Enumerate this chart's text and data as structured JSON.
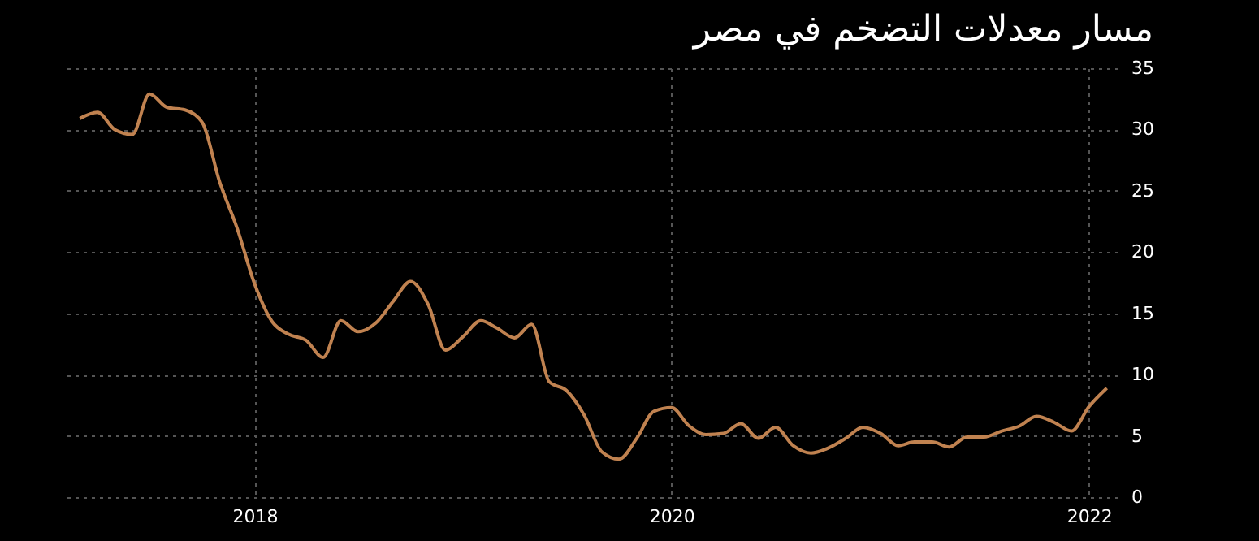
{
  "chart_data": {
    "type": "line",
    "title": "مسار معدلات التضخم في مصر",
    "x": [
      "2017-03",
      "2017-04",
      "2017-05",
      "2017-06",
      "2017-07",
      "2017-08",
      "2017-09",
      "2017-10",
      "2017-11",
      "2017-12",
      "2018-01",
      "2018-02",
      "2018-03",
      "2018-04",
      "2018-05",
      "2018-06",
      "2018-07",
      "2018-08",
      "2018-09",
      "2018-10",
      "2018-11",
      "2018-12",
      "2019-01",
      "2019-02",
      "2019-03",
      "2019-04",
      "2019-05",
      "2019-06",
      "2019-07",
      "2019-08",
      "2019-09",
      "2019-10",
      "2019-11",
      "2019-12",
      "2020-01",
      "2020-02",
      "2020-03",
      "2020-04",
      "2020-05",
      "2020-06",
      "2020-07",
      "2020-08",
      "2020-09",
      "2020-10",
      "2020-11",
      "2020-12",
      "2021-01",
      "2021-02",
      "2021-03",
      "2021-04",
      "2021-05",
      "2021-06",
      "2021-07",
      "2021-08",
      "2021-09",
      "2021-10",
      "2021-11",
      "2021-12",
      "2022-01",
      "2022-02"
    ],
    "series": [
      {
        "color": "#c08250",
        "values": [
          30.9,
          31.4,
          30.0,
          29.6,
          32.9,
          31.8,
          31.6,
          30.6,
          25.7,
          22.0,
          17.4,
          14.3,
          13.3,
          12.8,
          11.4,
          14.4,
          13.5,
          14.2,
          16.0,
          17.6,
          15.7,
          12.0,
          13.1,
          14.4,
          13.8,
          13.0,
          14.1,
          9.4,
          8.7,
          6.7,
          3.7,
          3.1,
          4.8,
          7.0,
          7.3,
          5.8,
          5.1,
          5.2,
          6.0,
          4.8,
          5.7,
          4.2,
          3.6,
          4.0,
          4.8,
          5.7,
          5.2,
          4.2,
          4.5,
          4.5,
          4.1,
          4.9,
          4.9,
          5.4,
          5.8,
          6.6,
          6.1,
          5.4,
          7.4,
          8.9
        ]
      }
    ],
    "xlim": [
      "2017-02-03",
      "2022-02-20"
    ],
    "xticks": [
      {
        "value": "2018",
        "label": "2018"
      },
      {
        "value": "2020",
        "label": "2020"
      },
      {
        "value": "2022",
        "label": "2022"
      }
    ],
    "ylim": [
      0,
      35
    ],
    "yticks": [
      0,
      5,
      10,
      15,
      20,
      25,
      30,
      35
    ],
    "grid": true,
    "marker": "none",
    "line_style": "solid"
  }
}
